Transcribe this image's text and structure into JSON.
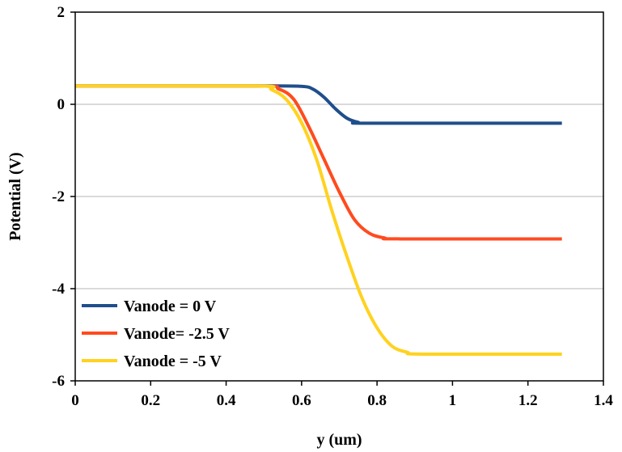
{
  "chart_data": {
    "type": "line",
    "title": "",
    "xlabel": "y (um)",
    "ylabel": "Potential (V)",
    "xlim": [
      0,
      1.4
    ],
    "ylim": [
      -6,
      2
    ],
    "xticks": [
      0,
      0.2,
      0.4,
      0.6,
      0.8,
      1,
      1.2,
      1.4
    ],
    "xtick_labels": [
      "0",
      "0.2",
      "0.4",
      "0.6",
      "0.8",
      "1",
      "1.2",
      "1.4"
    ],
    "yticks": [
      2,
      0,
      -2,
      -4,
      -6
    ],
    "ytick_labels": [
      "2",
      "0",
      "-2",
      "-4",
      "-6"
    ],
    "grid": "horizontal",
    "legend_position": "bottom-left",
    "series": [
      {
        "name": "Vanode = 0 V",
        "color": "#1f4e8c",
        "x": [
          0,
          0.5,
          0.6,
          0.63,
          0.66,
          0.69,
          0.72,
          0.75,
          0.78,
          1.29
        ],
        "y": [
          0.4,
          0.4,
          0.39,
          0.33,
          0.15,
          -0.1,
          -0.3,
          -0.39,
          -0.41,
          -0.41
        ]
      },
      {
        "name": "Vanode= -2.5 V",
        "color": "#ff4b1f",
        "x": [
          0,
          0.48,
          0.54,
          0.58,
          0.62,
          0.66,
          0.7,
          0.74,
          0.78,
          0.82,
          0.86,
          1.29
        ],
        "y": [
          0.4,
          0.4,
          0.33,
          0.1,
          -0.5,
          -1.2,
          -1.9,
          -2.5,
          -2.8,
          -2.9,
          -2.92,
          -2.92
        ]
      },
      {
        "name": "Vanode = -5 V",
        "color": "#ffd21f",
        "x": [
          0,
          0.48,
          0.52,
          0.56,
          0.6,
          0.64,
          0.68,
          0.72,
          0.76,
          0.8,
          0.84,
          0.88,
          0.92,
          1.29
        ],
        "y": [
          0.4,
          0.4,
          0.32,
          0.1,
          -0.4,
          -1.2,
          -2.3,
          -3.3,
          -4.2,
          -4.85,
          -5.25,
          -5.38,
          -5.42,
          -5.42
        ]
      }
    ]
  }
}
